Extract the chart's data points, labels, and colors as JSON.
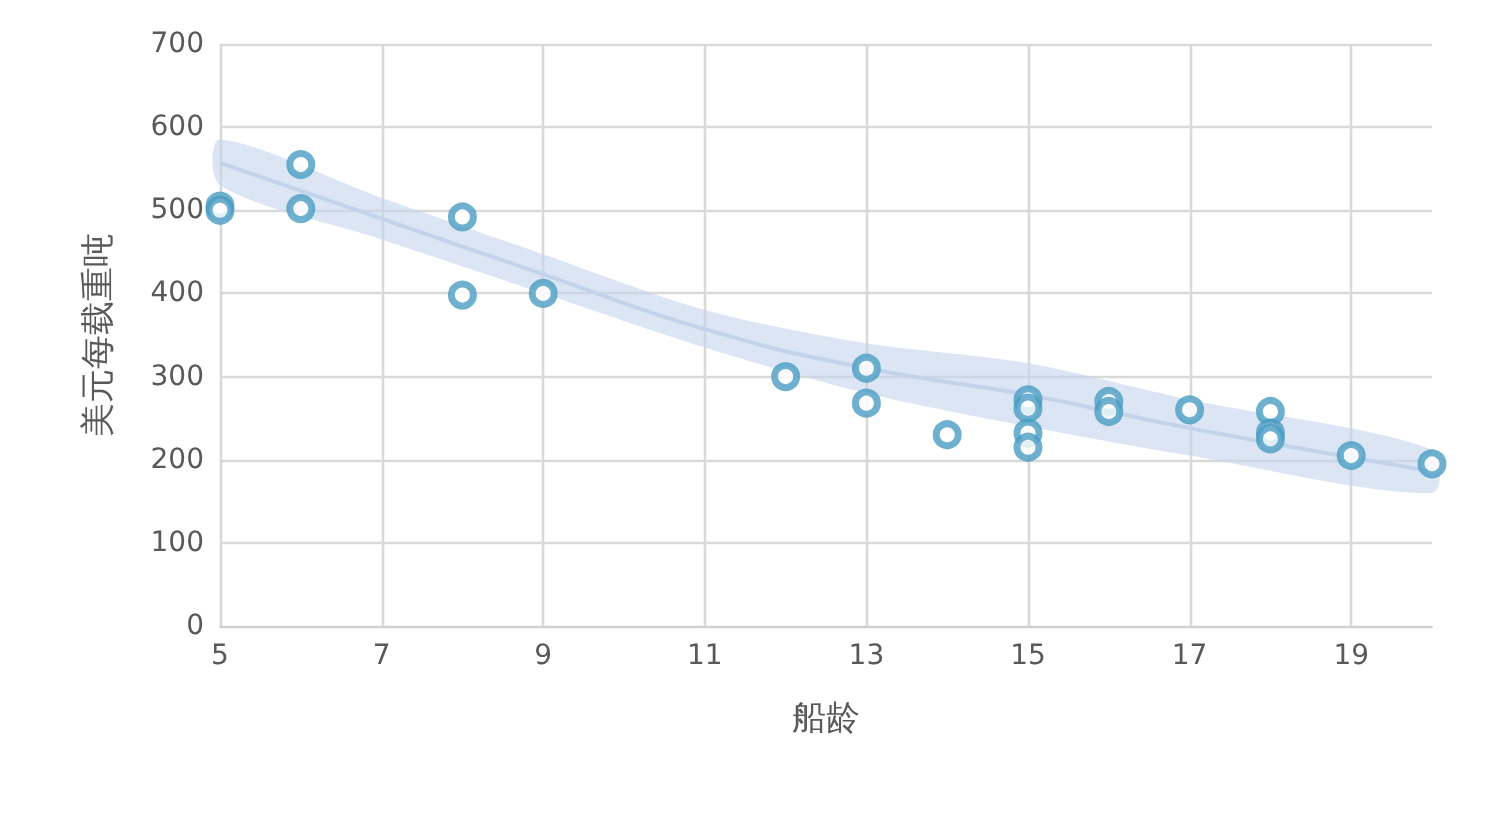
{
  "chart_data": {
    "type": "scatter",
    "xlabel": "船龄",
    "ylabel": "美元每载重吨",
    "xlim": [
      5,
      20
    ],
    "xticks": [
      5,
      7,
      9,
      11,
      13,
      15,
      17,
      19
    ],
    "ylim": [
      0,
      700
    ],
    "yticks": [
      0,
      100,
      200,
      300,
      400,
      500,
      600,
      700
    ],
    "grid": true,
    "marker": "circle",
    "series": [
      {
        "color": "#4a9cc2",
        "x": [
          5,
          5,
          6,
          6,
          8,
          8,
          9,
          12,
          13,
          13,
          14,
          15,
          15,
          15,
          15,
          16,
          16,
          17,
          18,
          18,
          18,
          19,
          20
        ],
        "values": [
          505,
          500,
          555,
          502,
          492,
          398,
          400,
          300,
          310,
          268,
          230,
          272,
          262,
          232,
          215,
          270,
          258,
          260,
          258,
          232,
          225,
          205,
          195
        ]
      },
      {
        "type": "line",
        "marker": "none",
        "color": "#c3d3ec",
        "x": [
          5,
          7,
          9,
          11,
          13,
          15,
          17,
          20
        ],
        "values": [
          557,
          490,
          423,
          357,
          310,
          278,
          238,
          186
        ],
        "lower": [
          530,
          465,
          400,
          335,
          280,
          240,
          205,
          160
        ],
        "upper": [
          585,
          515,
          447,
          380,
          340,
          316,
          272,
          212
        ]
      }
    ]
  }
}
